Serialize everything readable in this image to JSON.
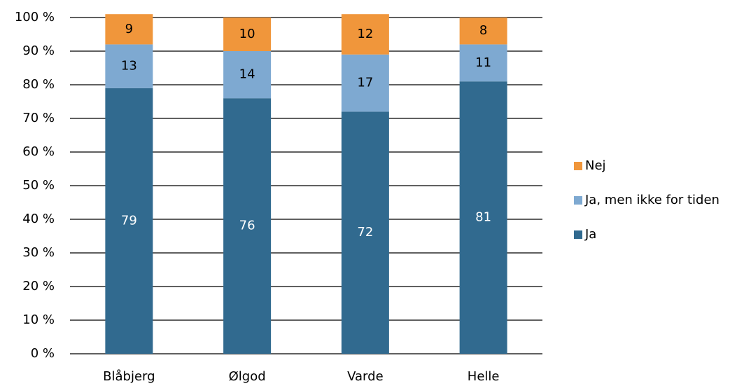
{
  "chart_data": {
    "type": "stacked_bar",
    "categories": [
      "Blåbjerg",
      "Ølgod",
      "Varde",
      "Helle"
    ],
    "series": [
      {
        "name": "Ja",
        "color": "#316a8f",
        "values": [
          79,
          76,
          72,
          81
        ]
      },
      {
        "name": "Ja, men ikke for tiden",
        "color": "#7ea9d1",
        "values": [
          13,
          14,
          17,
          11
        ]
      },
      {
        "name": "Nej",
        "color": "#f0963b",
        "values": [
          9,
          10,
          12,
          8
        ]
      }
    ],
    "ylim": [
      0,
      100
    ],
    "yticks": [
      {
        "value": 0,
        "label": "0 %"
      },
      {
        "value": 10,
        "label": "10 %"
      },
      {
        "value": 20,
        "label": "20 %"
      },
      {
        "value": 30,
        "label": "30 %"
      },
      {
        "value": 40,
        "label": "40 %"
      },
      {
        "value": 50,
        "label": "50 %"
      },
      {
        "value": 60,
        "label": "60 %"
      },
      {
        "value": 70,
        "label": "70 %"
      },
      {
        "value": 80,
        "label": "80 %"
      },
      {
        "value": 90,
        "label": "90 %"
      },
      {
        "value": 100,
        "label": "100 %"
      }
    ],
    "grid": true,
    "legend": "right"
  }
}
